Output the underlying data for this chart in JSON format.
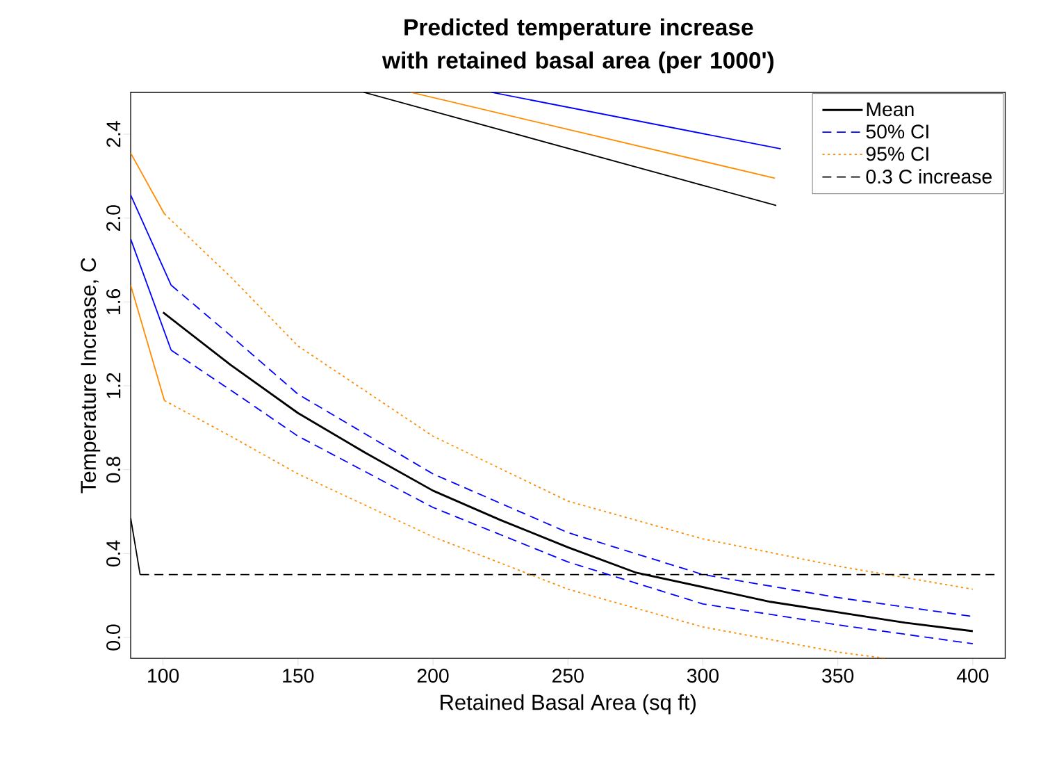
{
  "chart_data": {
    "type": "line",
    "title": "Predicted temperature increase with retained basal area (per 1000')",
    "xlabel": "Retained Basal Area (sq ft)",
    "ylabel": "Temperature Increase, C",
    "xlim": [
      88,
      412
    ],
    "ylim": [
      -0.1,
      2.6
    ],
    "xticks": [
      100,
      150,
      200,
      250,
      300,
      350,
      400
    ],
    "yticks": [
      {
        "value": 0,
        "label": "0.0"
      },
      {
        "value": 0.4,
        "label": "0.4"
      },
      {
        "value": 0.8,
        "label": "0.8"
      },
      {
        "value": 1.2,
        "label": "1.2"
      },
      {
        "value": 1.6,
        "label": "1.6"
      },
      {
        "value": 2.0,
        "label": "2.0"
      },
      {
        "value": 2.4,
        "label": "2.4"
      }
    ],
    "grid": false,
    "legend": "top right",
    "marker": "none",
    "series": [
      {
        "name": "Mean",
        "color": "#000000",
        "line_style": "solid",
        "x": [
          100,
          125,
          150,
          175,
          200,
          225,
          250,
          275,
          300,
          325,
          350,
          375,
          400
        ],
        "values": [
          1.55,
          1.3,
          1.07,
          0.88,
          0.7,
          0.56,
          0.43,
          0.31,
          0.24,
          0.17,
          0.12,
          0.07,
          0.03
        ]
      },
      {
        "name": "50% CI",
        "color": "#0000ff",
        "line_style": "dashed",
        "x": [
          103,
          125,
          150,
          200,
          250,
          300,
          350,
          400
        ],
        "values": [
          1.68,
          1.44,
          1.16,
          0.78,
          0.5,
          0.3,
          0.19,
          0.1
        ]
      },
      {
        "name": "95% CI",
        "color": "#ff8c00",
        "line_style": "dotted",
        "x": [
          100.5,
          125,
          150,
          200,
          250,
          300,
          350,
          400
        ],
        "values": [
          2.02,
          1.72,
          1.39,
          0.96,
          0.65,
          0.47,
          0.34,
          0.23
        ]
      },
      {
        "name": "0.3 C increase",
        "color": "#000000",
        "line_style": "dashed",
        "x": [
          91.5,
          409
        ],
        "values": [
          0.3,
          0.3
        ]
      },
      {
        "color": "#0000ff",
        "line_style": "dashed",
        "x": [
          103,
          125,
          150,
          200,
          250,
          300,
          350,
          400
        ],
        "values": [
          1.37,
          1.18,
          0.96,
          0.62,
          0.36,
          0.16,
          0.06,
          -0.03
        ]
      },
      {
        "color": "#ff8c00",
        "line_style": "dotted",
        "x": [
          100.5,
          125,
          150,
          200,
          250,
          300,
          350,
          368
        ],
        "values": [
          1.13,
          0.96,
          0.78,
          0.48,
          0.23,
          0.05,
          -0.07,
          -0.1
        ]
      },
      {
        "color": "#0000ff",
        "line_style": "solid",
        "x": [
          88,
          103
        ],
        "values": [
          2.11,
          1.68
        ]
      },
      {
        "color": "#0000ff",
        "line_style": "solid",
        "x": [
          88,
          103
        ],
        "values": [
          1.9,
          1.37
        ]
      },
      {
        "color": "#ff8c00",
        "line_style": "solid",
        "x": [
          88,
          100.5
        ],
        "values": [
          2.31,
          2.02
        ]
      },
      {
        "color": "#ff8c00",
        "line_style": "solid",
        "x": [
          88,
          100.5
        ],
        "values": [
          1.68,
          1.13
        ]
      },
      {
        "color": "#000000",
        "line_style": "solid",
        "x": [
          88,
          91.5
        ],
        "values": [
          0.57,
          0.3
        ]
      },
      {
        "color": "#0000ff",
        "line_style": "solid",
        "x": [
          221.6,
          328.9
        ],
        "values": [
          2.6,
          2.33
        ]
      },
      {
        "color": "#ff8c00",
        "line_style": "solid",
        "x": [
          191.7,
          326.7
        ],
        "values": [
          2.6,
          2.19
        ]
      },
      {
        "color": "#000000",
        "line_style": "solid",
        "x": [
          174.3,
          327.2
        ],
        "values": [
          2.6,
          2.06
        ]
      }
    ]
  }
}
